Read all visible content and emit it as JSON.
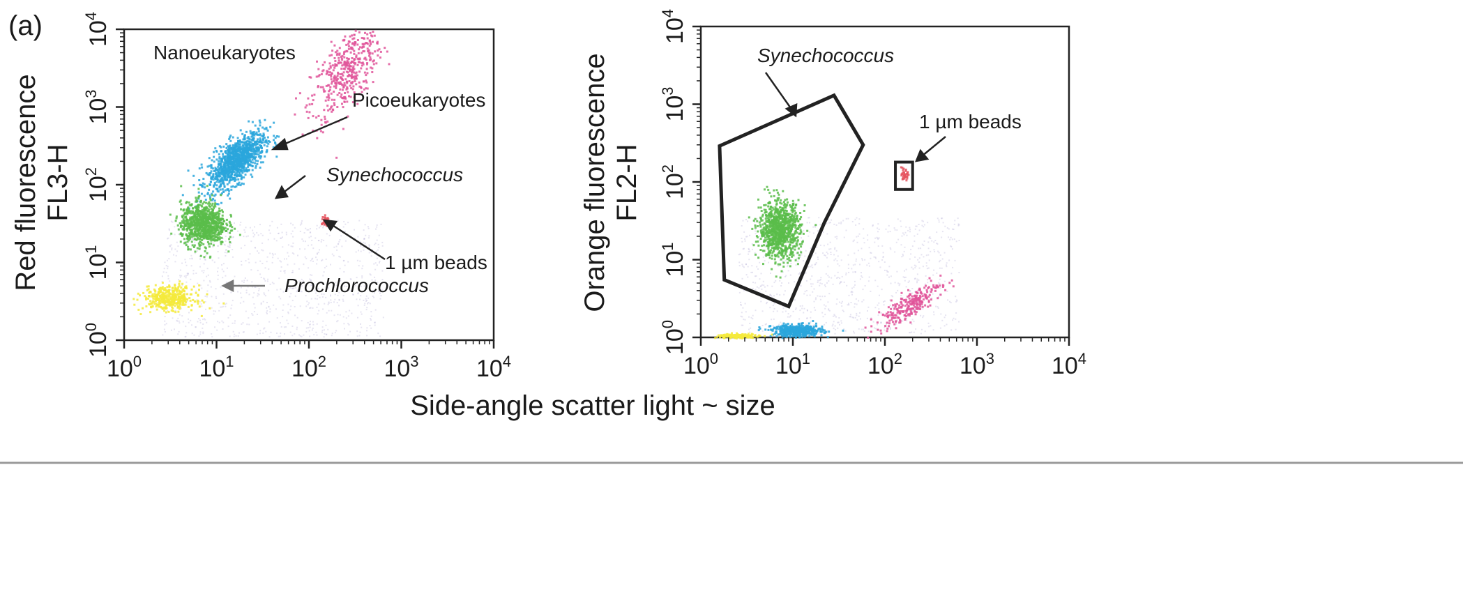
{
  "panel_label": "(a)",
  "shared_xlabel": "Side-angle scatter light ~ size",
  "colors": {
    "nanoeukaryotes": "#e0559a",
    "picoeukaryotes": "#2aa6dc",
    "synechococcus": "#5bbd4a",
    "prochlorococcus": "#f5ea3c",
    "beads": "#e5555f",
    "background_events": "#b8b3d6"
  },
  "chart_data": [
    {
      "type": "scatter",
      "title": "",
      "xlabel": "",
      "ylabel_lines": [
        "Red fluorescence",
        "FL3-H"
      ],
      "xscale": "log",
      "yscale": "log",
      "xlim": [
        1,
        10000
      ],
      "ylim": [
        1,
        10000
      ],
      "x_ticks": [
        "10^0",
        "10^1",
        "10^2",
        "10^3",
        "10^4"
      ],
      "y_ticks": [
        "10^0",
        "10^1",
        "10^2",
        "10^3",
        "10^4"
      ],
      "series": [
        {
          "key": "nanoeukaryotes",
          "color": "#e0559a",
          "center": [
            250,
            3000
          ],
          "spread_decades": [
            0.35,
            0.45
          ],
          "count": 450
        },
        {
          "key": "picoeukaryotes",
          "color": "#2aa6dc",
          "center": [
            16,
            210
          ],
          "spread_decades": [
            0.28,
            0.25
          ],
          "count": 1100
        },
        {
          "key": "synechococcus",
          "color": "#5bbd4a",
          "center": [
            7,
            32
          ],
          "spread_decades": [
            0.22,
            0.25
          ],
          "count": 900
        },
        {
          "key": "prochlorococcus",
          "color": "#f5ea3c",
          "center": [
            3,
            3.6
          ],
          "spread_decades": [
            0.25,
            0.14
          ],
          "count": 420
        },
        {
          "key": "beads",
          "color": "#e5555f",
          "center": [
            150,
            35
          ],
          "spread_decades": [
            0.03,
            0.06
          ],
          "count": 45
        }
      ],
      "annotations": [
        {
          "text": "Nanoeukaryotes",
          "italic": false
        },
        {
          "text": "Picoeukaryotes",
          "italic": false
        },
        {
          "text": "Synechococcus",
          "italic": true
        },
        {
          "text": "1 µm beads",
          "italic": false
        },
        {
          "text": "Prochlorococcus",
          "italic": true
        }
      ]
    },
    {
      "type": "scatter",
      "title": "",
      "xlabel": "",
      "ylabel_lines": [
        "Orange fluorescence",
        "FL2-H"
      ],
      "xscale": "log",
      "yscale": "log",
      "xlim": [
        1,
        10000
      ],
      "ylim": [
        1,
        10000
      ],
      "x_ticks": [
        "10^0",
        "10^1",
        "10^2",
        "10^3",
        "10^4"
      ],
      "y_ticks": [
        "10^0",
        "10^1",
        "10^2",
        "10^3",
        "10^4"
      ],
      "series": [
        {
          "key": "synechococcus",
          "color": "#5bbd4a",
          "center": [
            7,
            25
          ],
          "spread_decades": [
            0.2,
            0.33
          ],
          "count": 950
        },
        {
          "key": "picoeukaryotes",
          "color": "#2aa6dc",
          "center": [
            11,
            1.25
          ],
          "spread_decades": [
            0.25,
            0.07
          ],
          "count": 450
        },
        {
          "key": "nanoeukaryotes",
          "color": "#e0559a",
          "center": [
            180,
            2.7
          ],
          "spread_decades": [
            0.32,
            0.15
          ],
          "count": 260
        },
        {
          "key": "prochlorococcus",
          "color": "#f5ea3c",
          "center": [
            2.5,
            1.07
          ],
          "spread_decades": [
            0.2,
            0.03
          ],
          "count": 160
        },
        {
          "key": "beads",
          "color": "#e5555f",
          "center": [
            160,
            125
          ],
          "spread_decades": [
            0.03,
            0.06
          ],
          "count": 40
        }
      ],
      "gates": [
        {
          "name": "Synechococcus gate",
          "polygon": [
            [
              1.6,
              290
            ],
            [
              28,
              1300
            ],
            [
              58,
              300
            ],
            [
              22,
              30
            ],
            [
              9,
              2.5
            ],
            [
              1.8,
              5.5
            ]
          ]
        },
        {
          "name": "1 µm beads gate",
          "rect": {
            "x": [
              130,
              200
            ],
            "y": [
              80,
              180
            ]
          }
        }
      ],
      "annotations": [
        {
          "text": "Synechococcus",
          "italic": true
        },
        {
          "text": "1 µm beads",
          "italic": false
        }
      ]
    }
  ]
}
